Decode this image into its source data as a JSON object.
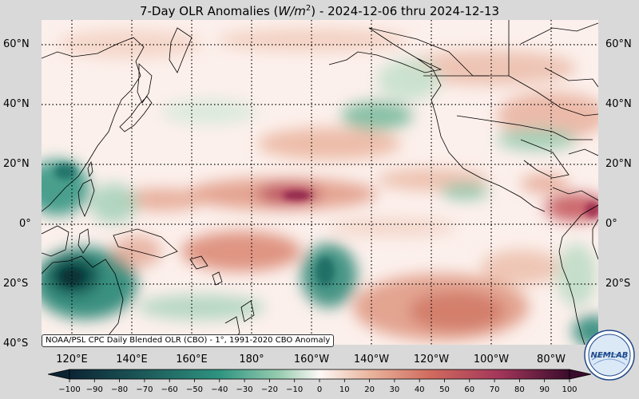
{
  "title": {
    "prefix": "7-Day OLR Anomalies (",
    "unit_base": "W/m",
    "unit_exp": "2",
    "suffix": ") - 2024-12-06 thru 2024-12-13"
  },
  "latitude_labels": [
    {
      "label": "60°N",
      "lat": 60
    },
    {
      "label": "40°N",
      "lat": 40
    },
    {
      "label": "20°N",
      "lat": 20
    },
    {
      "label": "0°",
      "lat": 0
    },
    {
      "label": "20°S",
      "lat": -20
    },
    {
      "label": "40°S",
      "lat": -40
    }
  ],
  "longitude_labels": [
    {
      "label": "120°E",
      "lon": 120
    },
    {
      "label": "140°E",
      "lon": 140
    },
    {
      "label": "160°E",
      "lon": 160
    },
    {
      "label": "180°",
      "lon": 180
    },
    {
      "label": "160°W",
      "lon": 200
    },
    {
      "label": "140°W",
      "lon": 220
    },
    {
      "label": "120°W",
      "lon": 240
    },
    {
      "label": "100°W",
      "lon": 260
    },
    {
      "label": "80°W",
      "lon": 280
    }
  ],
  "credit": "NOAA/PSL CPC Daily Blended OLR (CBO) - 1°, 1991-2020 CBO Anomaly",
  "colorbar": {
    "min": -100,
    "max": 100,
    "ticks": [
      "−100",
      "−90",
      "−80",
      "−70",
      "−60",
      "−50",
      "−40",
      "−30",
      "−20",
      "−10",
      "0",
      "10",
      "20",
      "30",
      "40",
      "50",
      "60",
      "70",
      "80",
      "90",
      "100"
    ]
  },
  "logo_text": "NEMLAB",
  "colors": {
    "strong_negative": "#0b3a3a",
    "negative": "#2e8a7a",
    "weak_negative": "#b9dcc6",
    "neutral": "#fbefea",
    "weak_positive": "#efc5b4",
    "positive": "#d06c5e",
    "strong_positive": "#5c1040"
  }
}
